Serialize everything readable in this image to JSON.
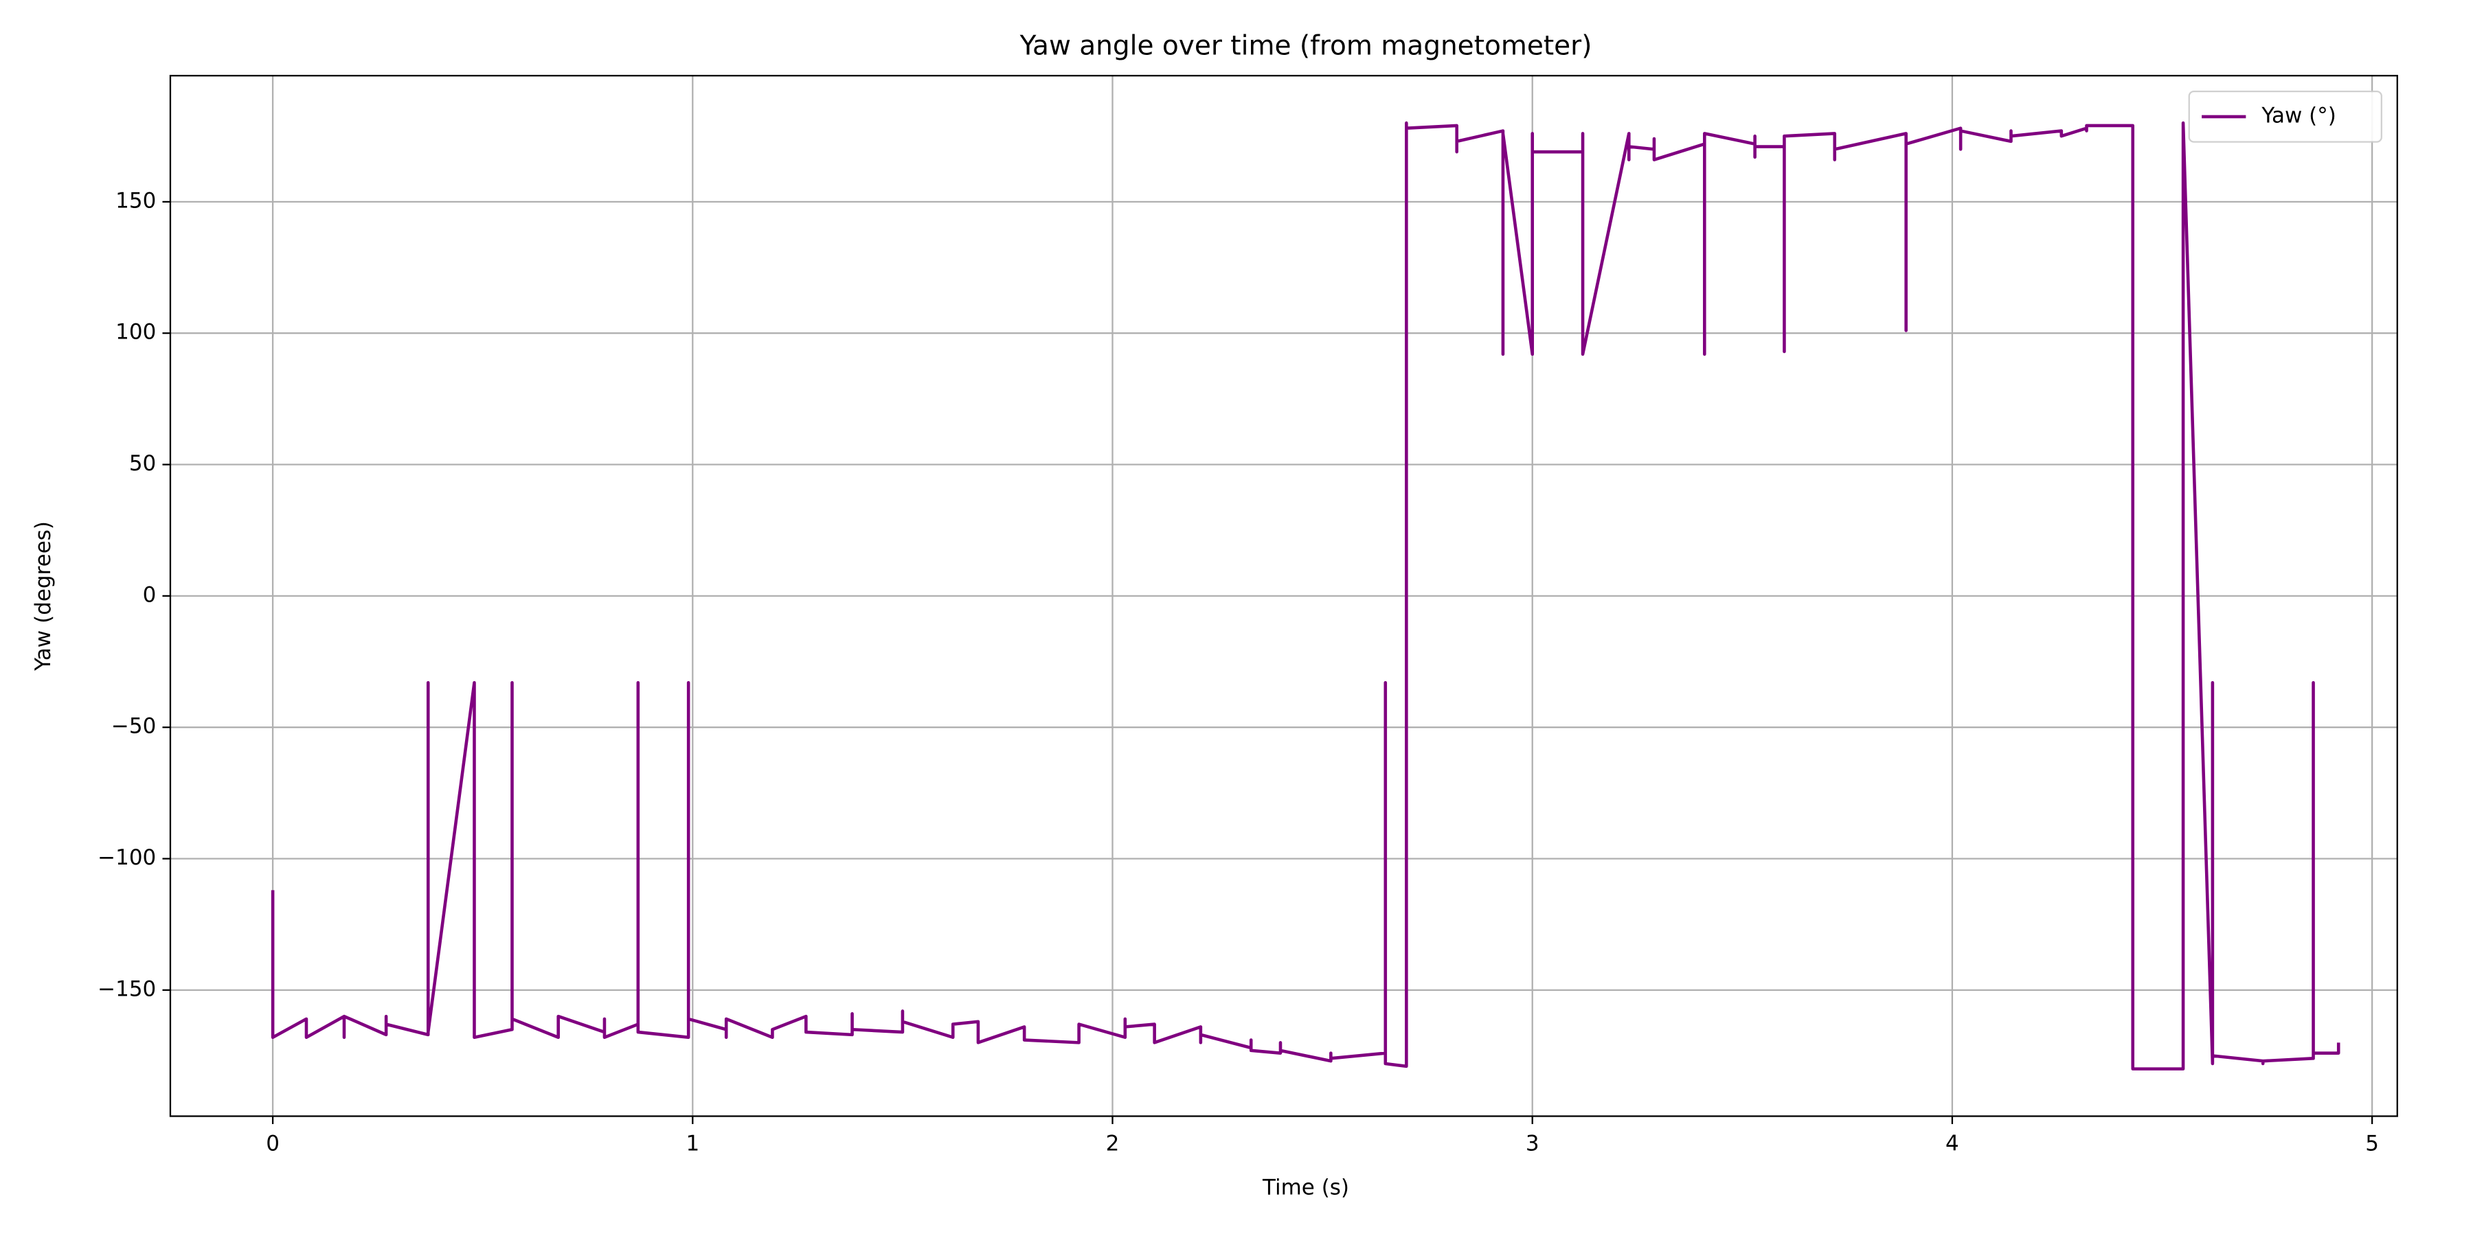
{
  "chart_data": {
    "type": "line",
    "title": "Yaw angle over time (from magnetometer)",
    "x_label": "Time (s)",
    "y_label": "Yaw (degrees)",
    "x": [
      0,
      0,
      0.08,
      0.08,
      0.17,
      0.17,
      0.17,
      0.27,
      0.27,
      0.27,
      0.37,
      0.37,
      0.37,
      0.48,
      0.48,
      0.57,
      0.57,
      0.57,
      0.68,
      0.68,
      0.79,
      0.79,
      0.79,
      0.87,
      0.87,
      0.87,
      0.99,
      0.99,
      0.99,
      1.08,
      1.08,
      1.08,
      1.19,
      1.19,
      1.27,
      1.27,
      1.38,
      1.38,
      1.38,
      1.5,
      1.5,
      1.5,
      1.62,
      1.62,
      1.68,
      1.68,
      1.79,
      1.79,
      1.92,
      1.92,
      2.03,
      2.03,
      2.03,
      2.1,
      2.1,
      2.21,
      2.21,
      2.21,
      2.33,
      2.33,
      2.33,
      2.4,
      2.4,
      2.4,
      2.52,
      2.52,
      2.52,
      2.65,
      2.65,
      2.65,
      2.7,
      2.7,
      2.7,
      2.82,
      2.82,
      2.82,
      2.93,
      2.93,
      2.93,
      3.0,
      3.0,
      3.0,
      3.12,
      3.12,
      3.12,
      3.23,
      3.23,
      3.23,
      3.29,
      3.29,
      3.29,
      3.41,
      3.41,
      3.41,
      3.53,
      3.53,
      3.53,
      3.53,
      3.6,
      3.6,
      3.6,
      3.72,
      3.72,
      3.72,
      3.89,
      3.89,
      3.89,
      4.02,
      4.02,
      4.02,
      4.14,
      4.14,
      4.14,
      4.26,
      4.26,
      4.32,
      4.32,
      4.32,
      4.43,
      4.43,
      4.55,
      4.55,
      4.62,
      4.62,
      4.62,
      4.74,
      4.74,
      4.74,
      4.86,
      4.86,
      4.86,
      4.92,
      4.92
    ],
    "series": [
      {
        "name": "Yaw (°)",
        "color": "#800080",
        "values": [
          -112,
          -168,
          -161,
          -168,
          -160,
          -168,
          -160,
          -167,
          -160,
          -163,
          -167,
          -33,
          -166,
          -33,
          -168,
          -165,
          -33,
          -161,
          -168,
          -160,
          -166,
          -161,
          -168,
          -163,
          -33,
          -166,
          -168,
          -33,
          -161,
          -165,
          -168,
          -161,
          -168,
          -165,
          -160,
          -166,
          -167,
          -159,
          -165,
          -166,
          -158,
          -162,
          -168,
          -163,
          -162,
          -170,
          -164,
          -169,
          -170,
          -163,
          -168,
          -161,
          -164,
          -163,
          -170,
          -164,
          -170,
          -167,
          -172,
          -169,
          -173,
          -174,
          -170,
          -173,
          -177,
          -174,
          -176,
          -174,
          -33,
          -178,
          -179,
          180,
          178,
          179,
          169,
          173,
          177,
          92,
          176,
          92,
          176,
          169,
          169,
          176,
          92,
          176,
          166,
          171,
          170,
          174,
          166,
          172,
          92,
          176,
          172,
          167,
          175,
          171,
          171,
          93,
          175,
          176,
          166,
          170,
          176,
          101,
          172,
          178,
          170,
          177,
          173,
          177,
          175,
          177,
          175,
          178,
          177,
          179,
          179,
          -180,
          -180,
          180,
          -178,
          -33,
          -175,
          -177,
          -178,
          -177,
          -176,
          -33,
          -174,
          -174,
          -170
        ]
      }
    ],
    "xlim": [
      -0.244,
      5.06
    ],
    "ylim": [
      -198,
      198
    ],
    "xticks": [
      0,
      1,
      2,
      3,
      4,
      5
    ],
    "yticks": [
      {
        "value": -150,
        "label": "−150"
      },
      {
        "value": -100,
        "label": "−100"
      },
      {
        "value": -50,
        "label": "−50"
      },
      0,
      50,
      100,
      150
    ],
    "grid": true,
    "legend": "upper right"
  }
}
